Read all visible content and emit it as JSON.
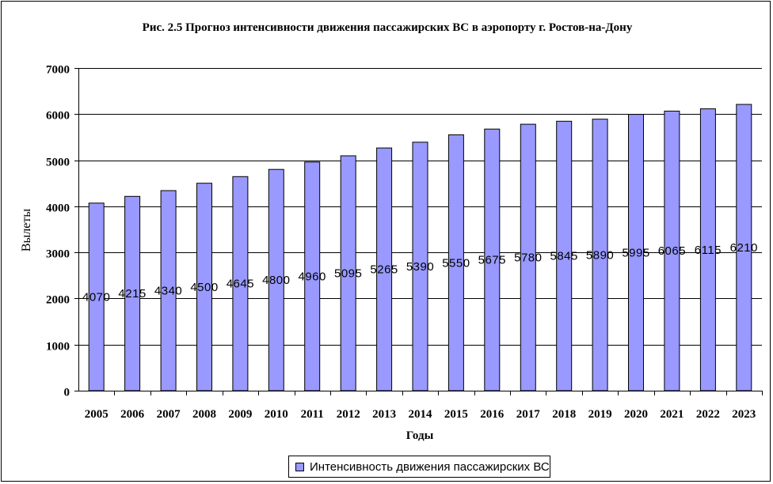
{
  "chart_data": {
    "type": "bar",
    "title": "Рис. 2.5 Прогноз интенсивности движения пассажирских ВС в аэропорту г. Ростов-на-Дону",
    "xlabel": "Годы",
    "ylabel": "Вылеты",
    "categories": [
      "2005",
      "2006",
      "2007",
      "2008",
      "2009",
      "2010",
      "2011",
      "2012",
      "2013",
      "2014",
      "2015",
      "2016",
      "2017",
      "2018",
      "2019",
      "2020",
      "2021",
      "2022",
      "2023"
    ],
    "series": [
      {
        "name": "Интенсивность движения пассажирских ВС",
        "values": [
          4070,
          4215,
          4340,
          4500,
          4645,
          4800,
          4960,
          5095,
          5265,
          5390,
          5550,
          5675,
          5780,
          5845,
          5890,
          5995,
          6065,
          6115,
          6210
        ]
      }
    ],
    "ylim": [
      0,
      7000
    ],
    "yticks": [
      0,
      1000,
      2000,
      3000,
      4000,
      5000,
      6000,
      7000
    ],
    "grid": true,
    "legend_position": "bottom",
    "bar_color": "#9999ff",
    "data_labels": "center"
  }
}
